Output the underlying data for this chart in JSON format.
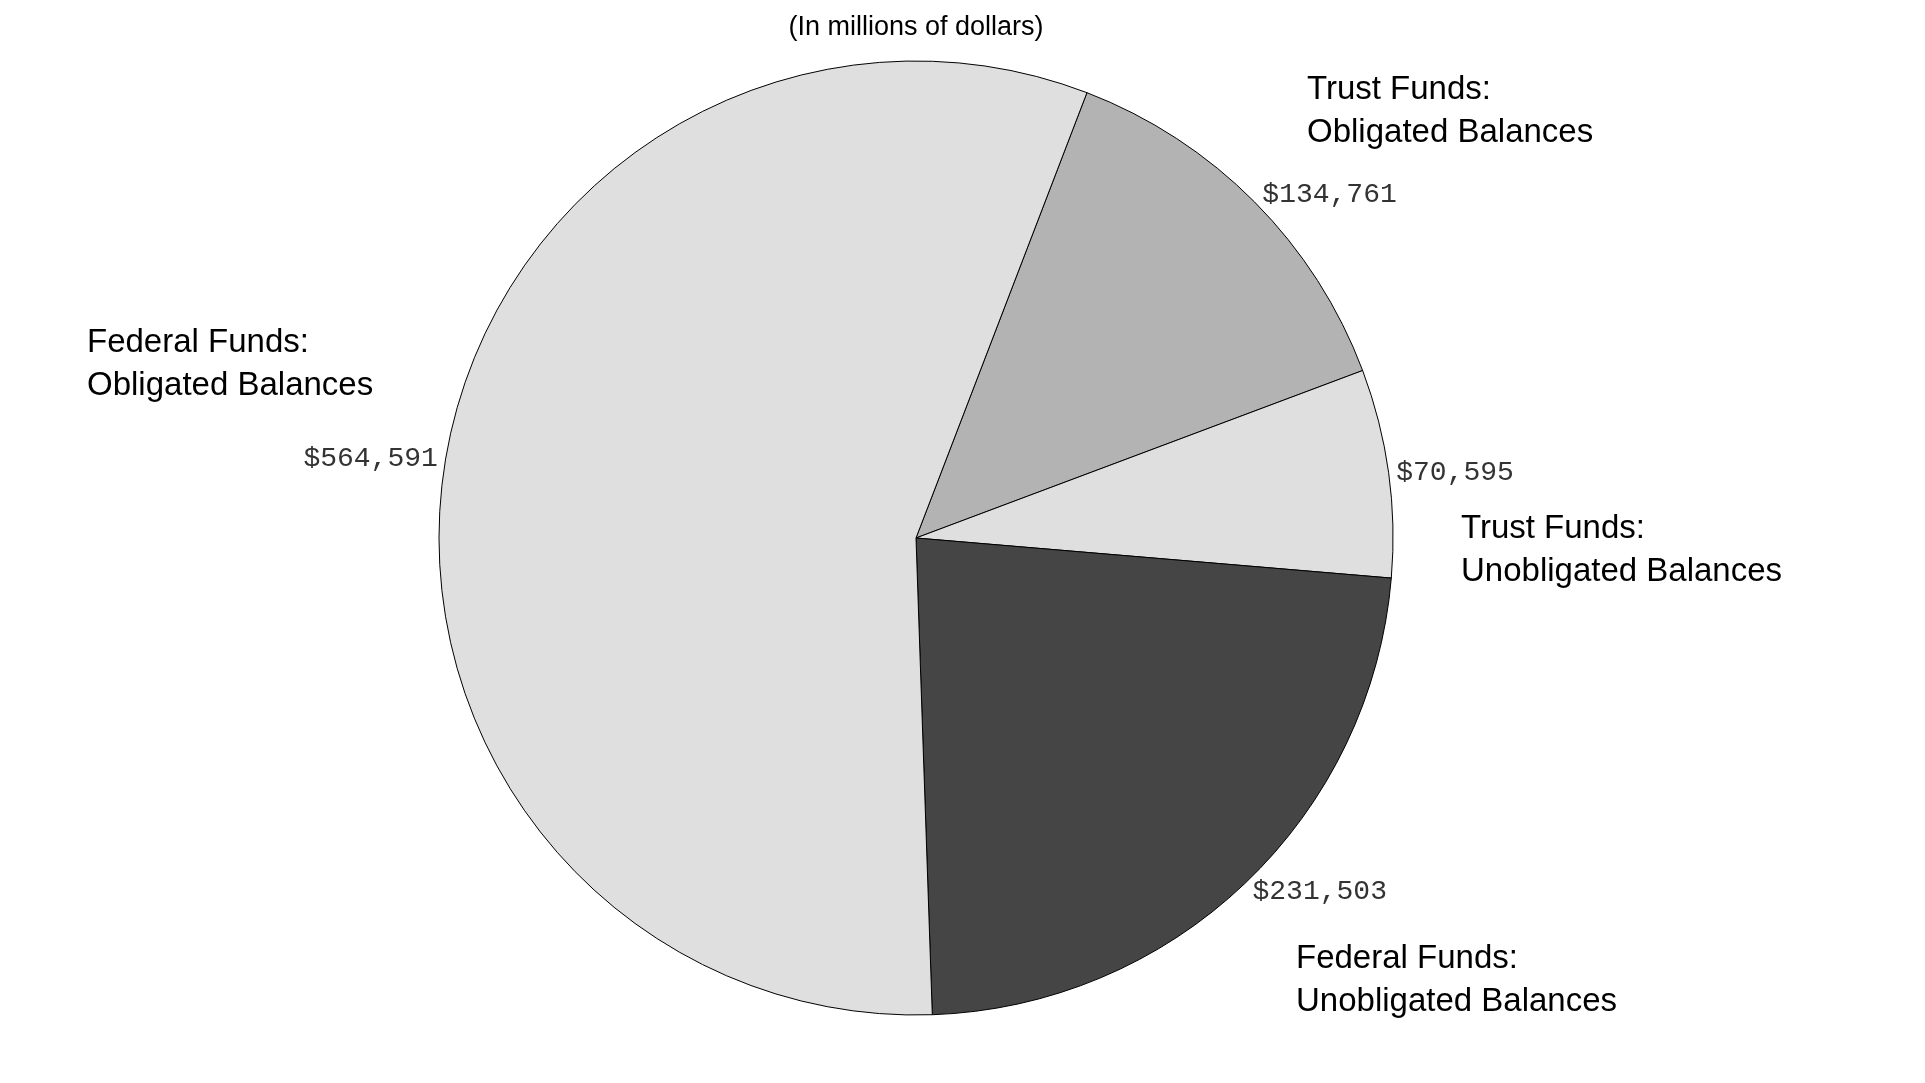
{
  "chart_data": {
    "type": "pie",
    "title": "(In millions of dollars)",
    "categories": [
      "Trust Funds: Obligated Balances",
      "Trust Funds: Unobligated Balances",
      "Federal Funds: Unobligated Balances",
      "Federal Funds: Obligated Balances"
    ],
    "values": [
      134761,
      70595,
      231503,
      564591
    ],
    "value_labels": [
      "$134,761",
      "$70,595",
      "$231,503",
      "$564,591"
    ],
    "colors": [
      "#b3b3b3",
      "#dfdfdf",
      "#454545",
      "#dfdfdf"
    ]
  }
}
